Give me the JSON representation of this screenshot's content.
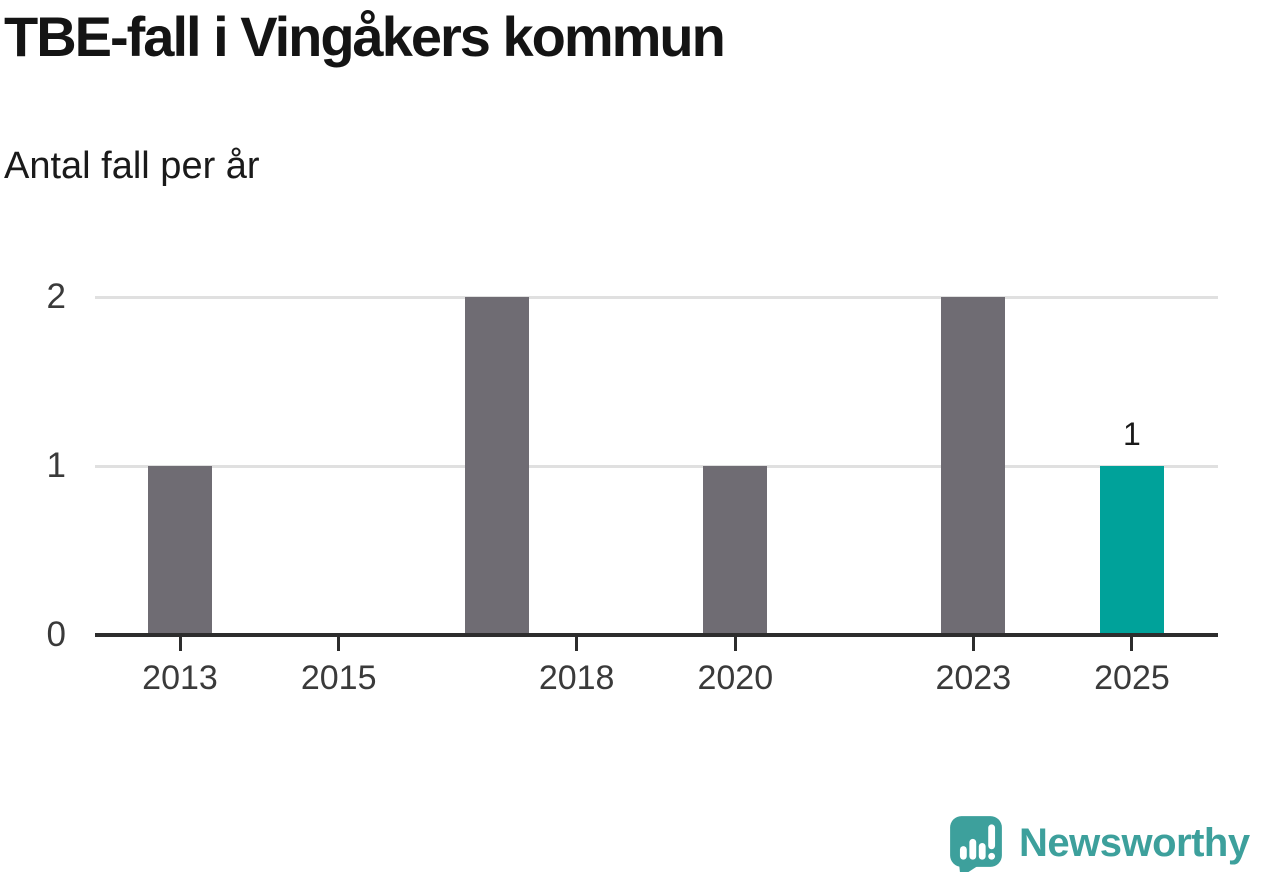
{
  "header": {
    "title": "TBE-fall i Vingåkers kommun",
    "subtitle": "Antal fall per år"
  },
  "chart_data": {
    "type": "bar",
    "title": "TBE-fall i Vingåkers kommun",
    "subtitle": "Antal fall per år",
    "ylabel": "Antal fall per år",
    "xlabel": "",
    "x": [
      2013,
      2017,
      2020,
      2023,
      2025
    ],
    "values": [
      1,
      2,
      1,
      2,
      1
    ],
    "highlight_x": 2025,
    "value_labels": [
      {
        "x": 2025,
        "text": "1"
      }
    ],
    "x_ticks": [
      {
        "value": 2013,
        "label": "2013"
      },
      {
        "value": 2015,
        "label": "2015"
      },
      {
        "value": 2018,
        "label": "2018"
      },
      {
        "value": 2020,
        "label": "2020"
      },
      {
        "value": 2023,
        "label": "2023"
      },
      {
        "value": 2025,
        "label": "2025"
      }
    ],
    "y_ticks": [
      {
        "value": 0,
        "label": "0"
      },
      {
        "value": 1,
        "label": "1"
      },
      {
        "value": 2,
        "label": "2"
      }
    ],
    "xlim": [
      2011.9,
      2026.1
    ],
    "ylim": [
      0,
      2
    ],
    "grid": "horizontal",
    "legend": "none",
    "colors": {
      "bar_default": "#6f6c73",
      "bar_highlight": "#00a29a",
      "gridline": "#e0e0e0",
      "axis_line": "#2d2d2d",
      "tick_label": "#3a3a3a",
      "value_label": "#1a1a1a"
    }
  },
  "footer": {
    "brand": "Newsworthy",
    "brand_color": "#3da09c",
    "logo_icon": "newsworthy-speech-bubble-chart-icon"
  }
}
